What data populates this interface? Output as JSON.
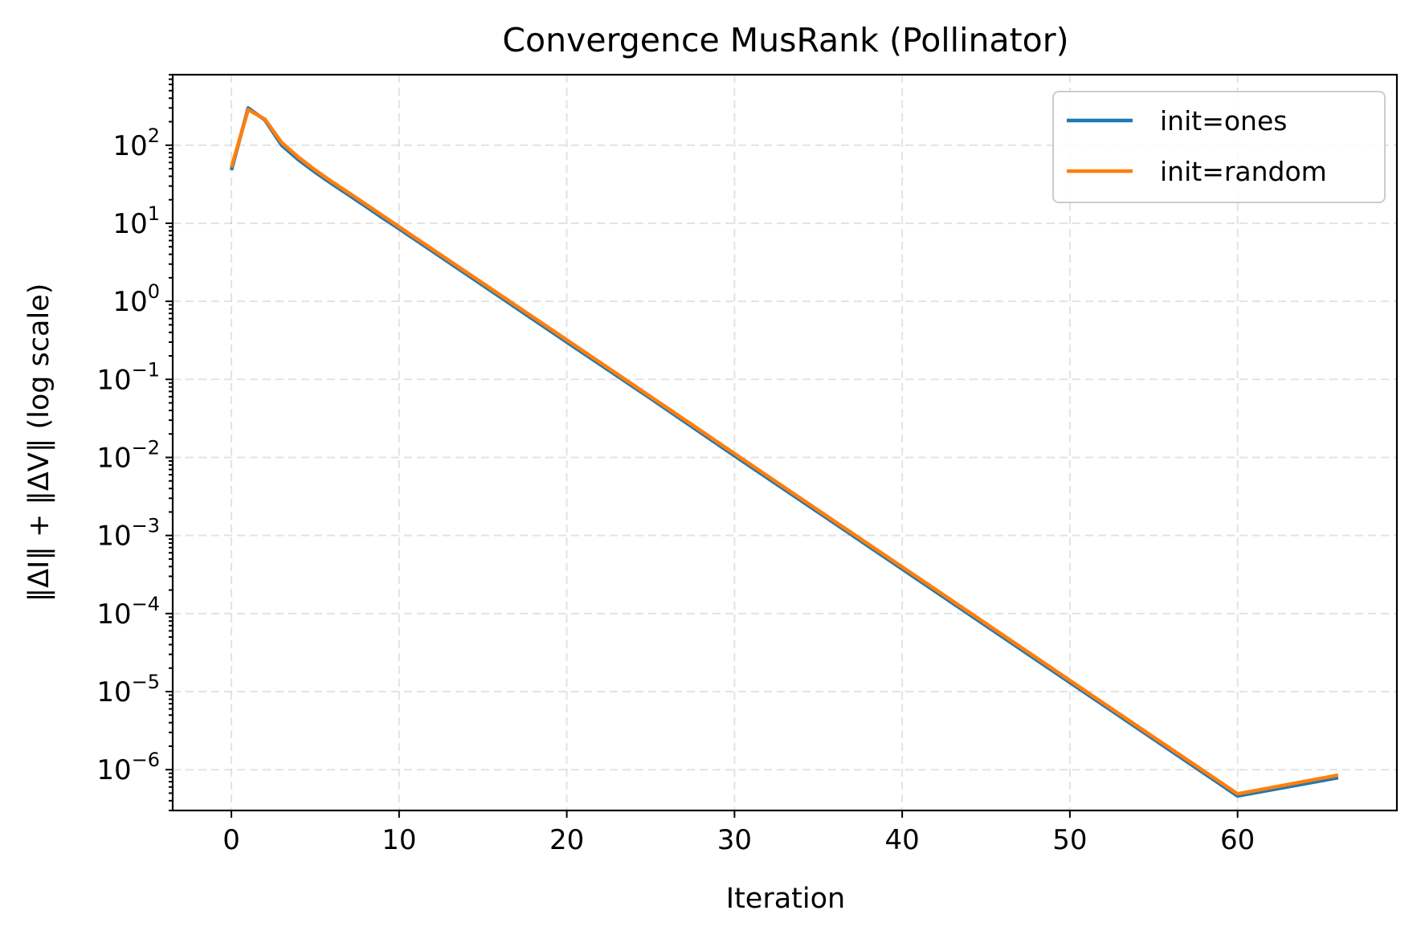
{
  "chart_data": {
    "type": "line",
    "title": "Convergence MusRank (Pollinator)",
    "xlabel": "Iteration",
    "ylabel": "‖ΔI‖ + ‖ΔV‖ (log scale)",
    "xlim": [
      -3.5,
      69.5
    ],
    "ylim": [
      3e-07,
      800
    ],
    "yscale": "log",
    "grid": true,
    "legend_position": "top-right",
    "x_ticks": [
      0,
      10,
      20,
      30,
      40,
      50,
      60
    ],
    "y_ticks": [
      {
        "value": 100,
        "base": "10",
        "exp": "2"
      },
      {
        "value": 10,
        "base": "10",
        "exp": "1"
      },
      {
        "value": 1,
        "base": "10",
        "exp": "0"
      },
      {
        "value": 0.1,
        "base": "10",
        "exp": "−1"
      },
      {
        "value": 0.01,
        "base": "10",
        "exp": "−2"
      },
      {
        "value": 0.001,
        "base": "10",
        "exp": "−3"
      },
      {
        "value": 0.0001,
        "base": "10",
        "exp": "−4"
      },
      {
        "value": 1e-05,
        "base": "10",
        "exp": "−5"
      },
      {
        "value": 1e-06,
        "base": "10",
        "exp": "−6"
      }
    ],
    "series": [
      {
        "name": "init=ones",
        "color": "#1f77b4",
        "x": [
          0,
          1,
          2,
          3,
          4,
          5,
          6,
          7,
          8,
          9,
          10,
          15,
          20,
          25,
          30,
          35,
          40,
          45,
          50,
          55,
          60,
          66
        ],
        "y": [
          48,
          300,
          210,
          100,
          65,
          45,
          32,
          23,
          16.5,
          11.8,
          8.5,
          1.6,
          0.3,
          0.057,
          0.0105,
          0.00198,
          0.000372,
          6.98e-05,
          1.31e-05,
          2.46e-06,
          4.6e-07,
          7.9e-07
        ]
      },
      {
        "name": "init=random",
        "color": "#ff7f0e",
        "x": [
          0,
          1,
          2,
          3,
          4,
          5,
          6,
          7,
          8,
          9,
          10,
          15,
          20,
          25,
          30,
          35,
          40,
          45,
          50,
          55,
          60,
          66
        ],
        "y": [
          52,
          285,
          215,
          108,
          70,
          48,
          34,
          24.5,
          17.6,
          12.6,
          9,
          1.7,
          0.32,
          0.06,
          0.0112,
          0.0021,
          0.000395,
          7.42e-05,
          1.39e-05,
          2.6e-06,
          4.9e-07,
          8.5e-07
        ]
      }
    ]
  }
}
